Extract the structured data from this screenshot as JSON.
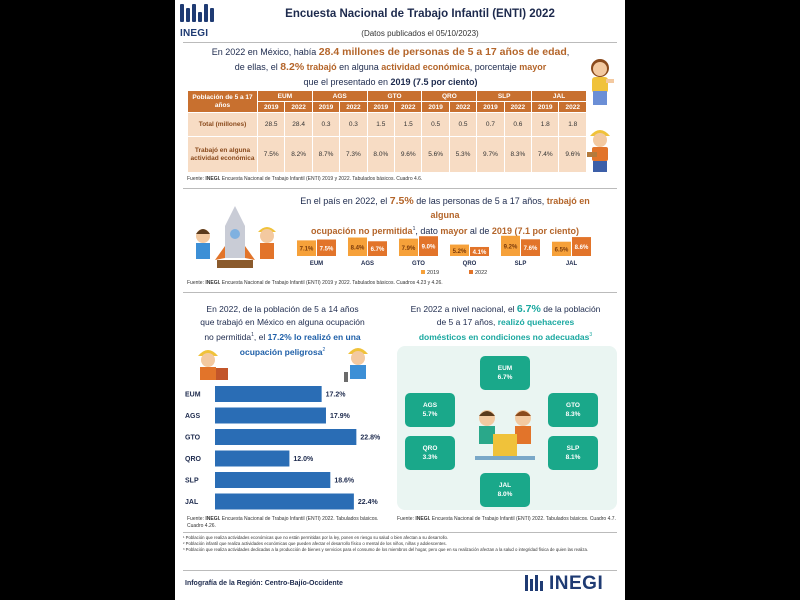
{
  "header": {
    "title": "Encuesta Nacional de Trabajo Infantil (ENTI) 2022",
    "subtitle": "(Datos publicados el 05/10/2023)",
    "logo_text": "INEGI"
  },
  "section1": {
    "line1_a": "En 2022 en México, había ",
    "line1_b": "28.4 millones de personas de 5 a 17 años de edad",
    "line1_c": ",",
    "line2_a": "de ellas, el ",
    "line2_b": "8.2%",
    "line2_c": " trabajó",
    "line2_d": " en alguna ",
    "line2_e": "actividad económica",
    "line2_f": ", porcentaje ",
    "line2_g": "mayor",
    "line3_a": "que el presentado en ",
    "line3_b": "2019 (7.5 por ciento)",
    "table": {
      "corner_label": "Población de 5 a 17 años",
      "entities": [
        "EUM",
        "AGS",
        "GTO",
        "QRO",
        "SLP",
        "JAL"
      ],
      "years": [
        "2019",
        "2022"
      ],
      "rows": [
        {
          "label": "Total (millones)",
          "values": [
            "28.5",
            "28.4",
            "0.3",
            "0.3",
            "1.5",
            "1.5",
            "0.5",
            "0.5",
            "0.7",
            "0.6",
            "1.8",
            "1.8"
          ]
        },
        {
          "label": "Trabajó en alguna actividad económica",
          "values": [
            "7.5%",
            "8.2%",
            "8.7%",
            "7.3%",
            "8.0%",
            "9.6%",
            "5.6%",
            "5.3%",
            "9.7%",
            "8.3%",
            "7.4%",
            "9.6%"
          ]
        }
      ]
    },
    "source_label": "Fuente:",
    "source_inegi": "INEGI.",
    "source_text": " Encuesta Nacional de Trabajo Infantil (ENTI) 2019 y 2022. Tabulados básicos. Cuadro 4.6."
  },
  "section2": {
    "line1_a": "En el país en 2022, el ",
    "line1_b": "7.5%",
    "line1_c": " de las personas de 5 a 17 años, ",
    "line1_d": "trabajó en alguna",
    "line2_a": "ocupación no permitida",
    "line2_sup": "1",
    "line2_b": ", dato ",
    "line2_c": "mayor",
    "line2_d": " al de ",
    "line2_e": "2019 (7.1 por ciento)",
    "source_label": "Fuente:",
    "source_inegi": "INEGI.",
    "source_text": " Encuesta Nacional de Trabajo Infantil (ENTI) 2019 y 2022. Tabulados básicos. Cuadros 4.23 y 4.26."
  },
  "section3": {
    "line1": "En 2022, de la población de 5 a 14 años",
    "line2": "que trabajó en México en alguna ocupación",
    "line3_a": "no permitida",
    "line3_sup": "1",
    "line3_b": ", el ",
    "line3_c": "17.2% lo realizó en una",
    "line4_a": "ocupación peligrosa",
    "line4_sup": "2",
    "source_label": "Fuente:",
    "source_inegi": "INEGI.",
    "source_text": " Encuesta Nacional de Trabajo Infantil (ENTI) 2022. Tabulados básicos. Cuadro 4.26."
  },
  "section4": {
    "line1_a": "En 2022 a nivel nacional, el ",
    "line1_b": "6.7%",
    "line1_c": " de la población",
    "line2_a": "de 5 a 17 años, ",
    "line2_b": "realizó quehaceres",
    "line3_a": "domésticos en condiciones no adecuadas",
    "line3_sup": "3",
    "boxes": [
      {
        "name": "EUM",
        "value": "6.7%"
      },
      {
        "name": "AGS",
        "value": "5.7%"
      },
      {
        "name": "GTO",
        "value": "8.3%"
      },
      {
        "name": "QRO",
        "value": "3.3%"
      },
      {
        "name": "SLP",
        "value": "8.1%"
      },
      {
        "name": "JAL",
        "value": "8.0%"
      }
    ],
    "source_label": "Fuente:",
    "source_inegi": "INEGI.",
    "source_text": " Encuesta Nacional de Trabajo Infantil (ENTI) 2022. Tabulados básicos. Cuadro 4.7."
  },
  "footnotes": [
    "¹ Población que realiza actividades económicas que no están permitidas por la ley, ponen en riesgo su salud o bien afectan a su desarrollo.",
    "² Población infantil que realiza actividades económicas que pueden afectar el desarrollo físico o mental de los niños, niñas y adolescentes.",
    "³ Población que realiza actividades dedicadas a la producción de bienes y servicios para el consumo de los miembros del hogar, pero que en su realización afectan a la salud o integridad física de quien las realiza."
  ],
  "footer": {
    "region": "Infografía de la Región: Centro-Bajío-Occidente",
    "logo_text": "INEGI"
  },
  "colors": {
    "orange_2019": "#f6a13a",
    "orange_2022": "#e2742a",
    "blue_bars": "#2a6db5",
    "teal_boxes": "#1aa88a",
    "table_header": "#c8702f",
    "table_cell": "#f7dcc4"
  },
  "chart_data": [
    {
      "type": "bar",
      "categories": [
        "EUM",
        "AGS",
        "GTO",
        "QRO",
        "SLP",
        "JAL"
      ],
      "series": [
        {
          "name": "2019",
          "values": [
            7.1,
            8.4,
            7.9,
            5.2,
            9.2,
            6.5
          ],
          "labels": [
            "7.1%",
            "8.4%",
            "7.9%",
            "5.2%",
            "9.2%",
            "6.5%"
          ]
        },
        {
          "name": "2022",
          "values": [
            7.5,
            6.7,
            9.0,
            4.1,
            7.6,
            8.6
          ],
          "labels": [
            "7.5%",
            "6.7%",
            "9.0%",
            "4.1%",
            "7.6%",
            "8.6%"
          ]
        }
      ],
      "legend": "bottom"
    },
    {
      "type": "bar",
      "orientation": "horizontal",
      "categories": [
        "EUM",
        "AGS",
        "GTO",
        "QRO",
        "SLP",
        "JAL"
      ],
      "values": [
        17.2,
        17.9,
        22.8,
        12.0,
        18.6,
        22.4
      ],
      "labels": [
        "17.2%",
        "17.9%",
        "22.8%",
        "12.0%",
        "18.6%",
        "22.4%"
      ]
    }
  ]
}
